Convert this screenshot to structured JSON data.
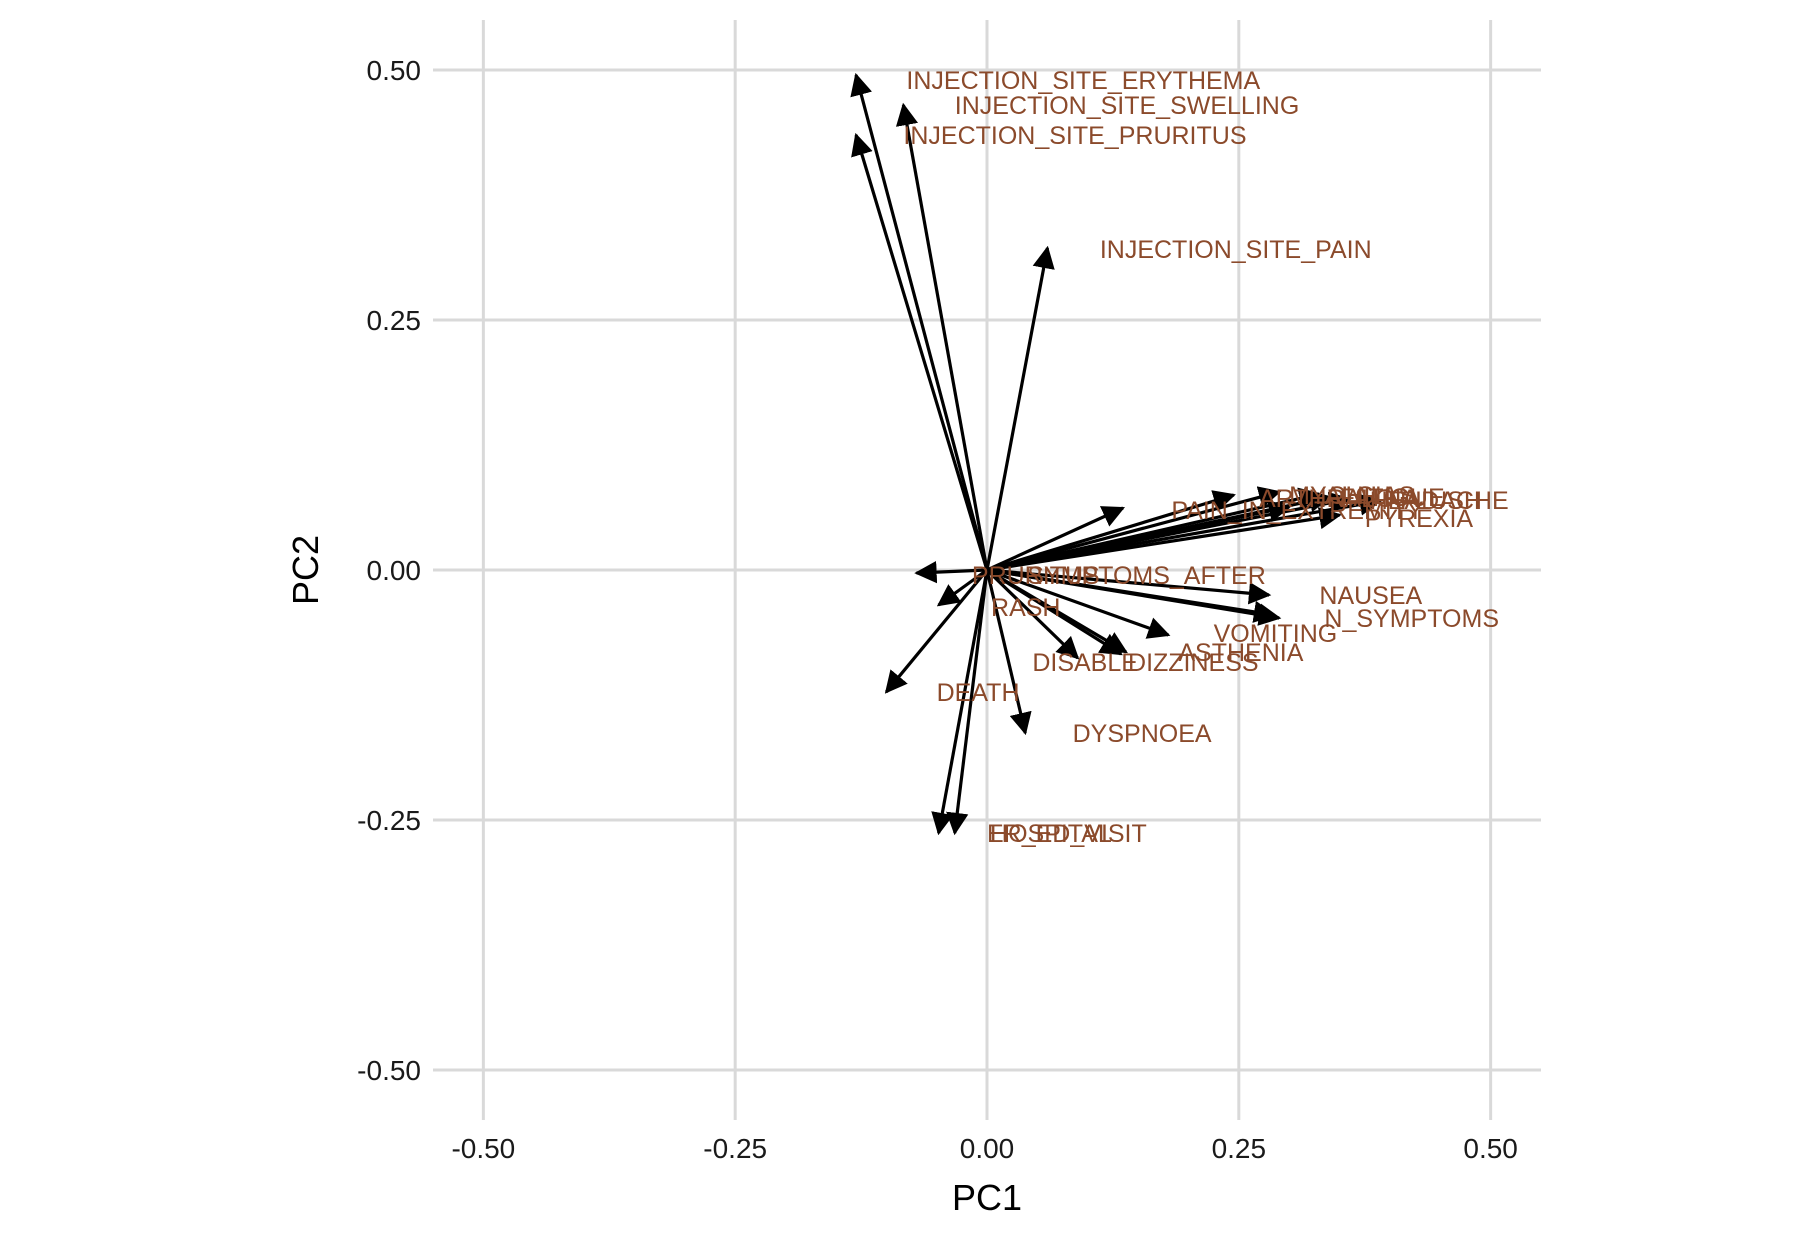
{
  "chart_data": {
    "type": "scatter",
    "subtype": "pca-loadings-biplot",
    "title": "",
    "xlabel": "PC1",
    "ylabel": "PC2",
    "xlim": [
      -0.55,
      0.55
    ],
    "ylim": [
      -0.55,
      0.55
    ],
    "x_ticks": [
      -0.5,
      -0.25,
      0,
      0.25,
      0.5
    ],
    "y_ticks": [
      -0.5,
      -0.25,
      0,
      0.25,
      0.5
    ],
    "x_tick_labels": [
      "-0.50",
      "-0.25",
      "0.00",
      "0.25",
      "0.50"
    ],
    "y_tick_labels": [
      "-0.50",
      "-0.25",
      "0.00",
      "0.25",
      "0.50"
    ],
    "grid": true,
    "arrow_color": "#000000",
    "label_color": "#8B4A2B",
    "grid_color": "#d9d9d9",
    "vectors": [
      {
        "label": "INJECTION_SITE_ERYTHEMA",
        "x": -0.13,
        "y": 0.495,
        "lx": -0.08,
        "ly": 0.49
      },
      {
        "label": "INJECTION_SITE_SWELLING",
        "x": -0.083,
        "y": 0.465,
        "lx": -0.032,
        "ly": 0.465
      },
      {
        "label": "INJECTION_SITE_PRURITUS",
        "x": -0.13,
        "y": 0.435,
        "lx": -0.083,
        "ly": 0.435
      },
      {
        "label": "INJECTION_SITE_PAIN",
        "x": 0.06,
        "y": 0.322,
        "lx": 0.112,
        "ly": 0.321
      },
      {
        "label": "ARTHRALGIA",
        "x": 0.245,
        "y": 0.075,
        "lx": 0.27,
        "ly": 0.072
      },
      {
        "label": "MYALGIA",
        "x": 0.29,
        "y": 0.078,
        "lx": 0.3,
        "ly": 0.075
      },
      {
        "label": "CHILLS",
        "x": 0.33,
        "y": 0.076,
        "lx": 0.338,
        "ly": 0.075
      },
      {
        "label": "FATIGUE",
        "x": 0.34,
        "y": 0.073,
        "lx": 0.35,
        "ly": 0.073
      },
      {
        "label": "HEADACHE",
        "x": 0.36,
        "y": 0.071,
        "lx": 0.38,
        "ly": 0.07
      },
      {
        "label": "FLUSH",
        "x": 0.39,
        "y": 0.069,
        "lx": 0.41,
        "ly": 0.07
      },
      {
        "label": "PAIN_IN_EXTREMITY",
        "x": 0.3,
        "y": 0.063,
        "lx": 0.183,
        "ly": 0.06
      },
      {
        "label": "PYREXIA",
        "x": 0.35,
        "y": 0.055,
        "lx": 0.375,
        "ly": 0.052
      },
      {
        "label": "",
        "x": 0.135,
        "y": 0.062,
        "lx": 0,
        "ly": 0
      },
      {
        "label": "SYMPTOMS_AFTER",
        "x": 0.28,
        "y": -0.025,
        "lx": 0.04,
        "ly": -0.005
      },
      {
        "label": "NAUSEA",
        "x": 0.285,
        "y": -0.045,
        "lx": 0.33,
        "ly": -0.025
      },
      {
        "label": "N_SYMPTOMS",
        "x": 0.29,
        "y": -0.048,
        "lx": 0.335,
        "ly": -0.048
      },
      {
        "label": "VOMITING",
        "x": 0.18,
        "y": -0.065,
        "lx": 0.225,
        "ly": -0.063
      },
      {
        "label": "ASTHENIA",
        "x": 0.138,
        "y": -0.082,
        "lx": 0.19,
        "ly": -0.082
      },
      {
        "label": "DIZZINESS",
        "x": 0.133,
        "y": -0.084,
        "lx": 0.14,
        "ly": -0.092
      },
      {
        "label": "DISABLE",
        "x": 0.09,
        "y": -0.088,
        "lx": 0.045,
        "ly": -0.092
      },
      {
        "label": "DYSPNOEA",
        "x": 0.038,
        "y": -0.163,
        "lx": 0.085,
        "ly": -0.163
      },
      {
        "label": "PRURITUS",
        "x": -0.07,
        "y": -0.003,
        "lx": -0.015,
        "ly": -0.005
      },
      {
        "label": "RASH",
        "x": -0.048,
        "y": -0.035,
        "lx": 0.004,
        "ly": -0.037
      },
      {
        "label": "DEATH",
        "x": -0.1,
        "y": -0.122,
        "lx": -0.05,
        "ly": -0.122
      },
      {
        "label": "ER_ED_VISIT",
        "x": -0.032,
        "y": -0.263,
        "lx": 0.0,
        "ly": -0.263
      },
      {
        "label": "HOSPITAL",
        "x": -0.048,
        "y": -0.263,
        "lx": 0.003,
        "ly": -0.263
      }
    ]
  }
}
